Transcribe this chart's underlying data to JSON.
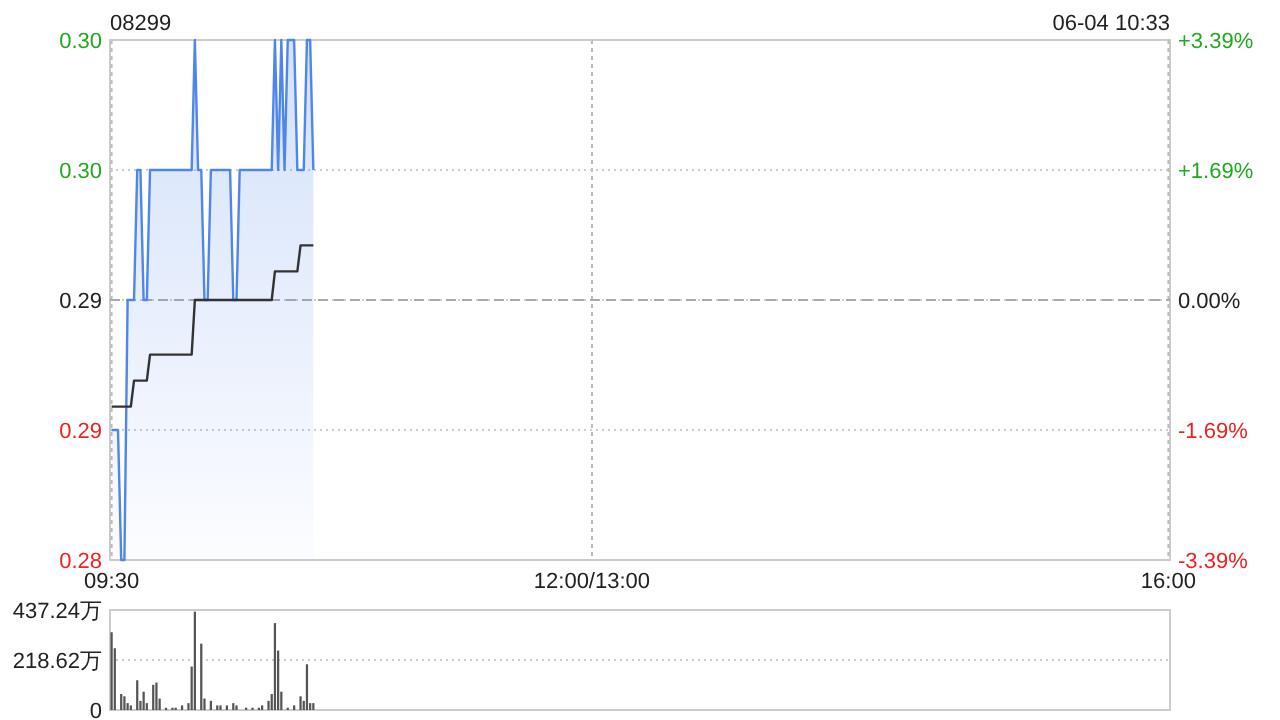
{
  "chart_data": [
    {
      "type": "area",
      "title": "08299",
      "subtitle": "06-04 10:33",
      "grid": true,
      "categories": [
        "09:30",
        null,
        null,
        null,
        null,
        null,
        null,
        null,
        null,
        null,
        null,
        null,
        null,
        null,
        null,
        null,
        null,
        null,
        null,
        null,
        null,
        null,
        null,
        null,
        null,
        null,
        null,
        null,
        null,
        null,
        null,
        null,
        null,
        null,
        null,
        null,
        null,
        null,
        null,
        null,
        null,
        null,
        null,
        null,
        null,
        null,
        null,
        null,
        null,
        null,
        null,
        null,
        null,
        null,
        null,
        null,
        null,
        null,
        null,
        null,
        null,
        null,
        null,
        null,
        null,
        null,
        null,
        null,
        null,
        null,
        null,
        null,
        null,
        null,
        null,
        null,
        null,
        null,
        null,
        null,
        null,
        null,
        null,
        null,
        null,
        null,
        null,
        null,
        null,
        null,
        null,
        null,
        null,
        null,
        null,
        null,
        null,
        null,
        null,
        null,
        null,
        null,
        null,
        null,
        null,
        null,
        null,
        null,
        null,
        null,
        null,
        null,
        null,
        null,
        null,
        null,
        null,
        null,
        null,
        null,
        null,
        null,
        null,
        null,
        null,
        null,
        null,
        null,
        null,
        null,
        null,
        null,
        null,
        null,
        null,
        null,
        null,
        null,
        null,
        null,
        null,
        null,
        null,
        null,
        null,
        null,
        null,
        null,
        null,
        null,
        "12:00/13:00",
        null,
        null,
        null,
        null,
        null,
        null,
        null,
        null,
        null,
        null,
        null,
        null,
        null,
        null,
        null,
        null,
        null,
        null,
        null,
        null,
        null,
        null,
        null,
        null,
        null,
        null,
        null,
        null,
        null,
        null,
        null,
        null,
        null,
        null,
        null,
        null,
        null,
        null,
        null,
        null,
        null,
        null,
        null,
        null,
        null,
        null,
        null,
        null,
        null,
        null,
        null,
        null,
        null,
        null,
        null,
        null,
        null,
        null,
        null,
        null,
        null,
        null,
        null,
        null,
        null,
        null,
        null,
        null,
        null,
        null,
        null,
        null,
        null,
        null,
        null,
        null,
        null,
        null,
        null,
        null,
        null,
        null,
        null,
        null,
        null,
        null,
        null,
        null,
        null,
        null,
        null,
        null,
        null,
        null,
        null,
        null,
        null,
        null,
        null,
        null,
        null,
        null,
        null,
        null,
        null,
        null,
        null,
        null,
        null,
        null,
        null,
        null,
        null,
        null,
        null,
        null,
        null,
        null,
        null,
        null,
        null,
        null,
        null,
        null,
        null,
        null,
        null,
        null,
        null,
        null,
        null,
        null,
        null,
        null,
        null,
        null,
        null,
        null,
        null,
        null,
        null,
        null,
        null,
        null,
        null,
        null,
        null,
        null,
        null,
        null,
        null,
        null,
        null,
        null,
        null,
        null,
        null,
        null,
        null,
        null,
        null,
        null,
        null,
        null,
        null,
        null,
        null,
        null,
        null,
        null,
        null,
        null,
        null,
        null,
        null,
        null,
        null,
        null,
        null,
        "16:00"
      ],
      "ylim": [
        0.285,
        0.305
      ],
      "yticks": [
        {
          "value": 0.285,
          "label": "0.28"
        },
        {
          "value": 0.29,
          "label": "0.29"
        },
        {
          "value": 0.295,
          "label": "0.29"
        },
        {
          "value": 0.3,
          "label": "0.30"
        },
        {
          "value": 0.305,
          "label": "0.30"
        }
      ],
      "y2lim": [
        -3.39,
        3.39
      ],
      "y2ticks": [
        {
          "value": -3.39,
          "label": "-3.39%"
        },
        {
          "value": -1.69,
          "label": "-1.69%"
        },
        {
          "value": 0,
          "label": "0.00%"
        },
        {
          "value": 1.69,
          "label": "+1.69%"
        },
        {
          "value": 3.39,
          "label": "+3.39%"
        }
      ],
      "ref_lines": [
        {
          "axis": "y",
          "value": 0.295,
          "label": null,
          "line_style": "dashed",
          "color": "#aaaaaa"
        }
      ],
      "series": [
        {
          "type": "area",
          "color": "#4f86ec",
          "values": [
            0.29,
            0.29,
            0.29,
            0.285,
            0.285,
            0.295,
            0.295,
            0.295,
            0.3,
            0.3,
            0.295,
            0.295,
            0.3,
            0.3,
            0.3,
            0.3,
            0.3,
            0.3,
            0.3,
            0.3,
            0.3,
            0.3,
            0.3,
            0.3,
            0.3,
            0.3,
            0.305,
            0.3,
            0.3,
            0.295,
            0.295,
            0.3,
            0.3,
            0.3,
            0.3,
            0.3,
            0.3,
            0.3,
            0.295,
            0.295,
            0.3,
            0.3,
            0.3,
            0.3,
            0.3,
            0.3,
            0.3,
            0.3,
            0.3,
            0.3,
            0.3,
            0.305,
            0.3,
            0.305,
            0.3,
            0.305,
            0.305,
            0.305,
            0.3,
            0.3,
            0.3,
            0.305,
            0.305,
            0.3,
            null,
            null,
            null,
            null,
            null,
            null,
            null,
            null,
            null,
            null,
            null,
            null,
            null,
            null,
            null,
            null,
            null,
            null,
            null,
            null,
            null,
            null,
            null,
            null,
            null,
            null,
            null,
            null,
            null,
            null,
            null,
            null,
            null,
            null,
            null,
            null,
            null,
            null,
            null,
            null,
            null,
            null,
            null,
            null,
            null,
            null,
            null,
            null,
            null,
            null,
            null,
            null,
            null,
            null,
            null,
            null,
            null,
            null,
            null,
            null,
            null,
            null,
            null,
            null,
            null,
            null,
            null,
            null,
            null,
            null,
            null,
            null,
            null,
            null,
            null,
            null,
            null,
            null,
            null,
            null,
            null,
            null,
            null,
            null,
            null,
            null,
            null,
            null,
            null,
            null,
            null,
            null,
            null,
            null,
            null,
            null,
            null,
            null,
            null,
            null,
            null,
            null,
            null,
            null,
            null,
            null,
            null,
            null,
            null,
            null,
            null,
            null,
            null,
            null,
            null,
            null,
            null,
            null,
            null,
            null,
            null,
            null,
            null,
            null,
            null,
            null,
            null,
            null,
            null,
            null,
            null,
            null,
            null,
            null,
            null,
            null,
            null,
            null,
            null,
            null,
            null,
            null,
            null,
            null,
            null,
            null,
            null,
            null,
            null,
            null,
            null,
            null,
            null,
            null,
            null,
            null,
            null,
            null,
            null,
            null,
            null,
            null,
            null,
            null,
            null,
            null,
            null,
            null,
            null,
            null,
            null,
            null,
            null,
            null,
            null,
            null,
            null,
            null,
            null,
            null,
            null,
            null,
            null,
            null,
            null,
            null,
            null,
            null,
            null,
            null,
            null,
            null,
            null,
            null,
            null,
            null,
            null,
            null,
            null,
            null,
            null,
            null,
            null,
            null,
            null,
            null,
            null,
            null,
            null,
            null,
            null,
            null,
            null,
            null,
            null,
            null,
            null,
            null,
            null,
            null,
            null,
            null,
            null,
            null,
            null,
            null,
            null,
            null,
            null,
            null,
            null,
            null,
            null,
            null,
            null,
            null,
            null,
            null,
            null,
            null,
            null,
            null,
            null,
            null,
            null,
            null,
            null,
            null,
            null,
            null,
            null,
            null,
            null,
            null,
            null,
            null,
            null,
            null,
            null,
            null,
            null,
            null,
            null,
            null,
            null,
            null,
            null
          ]
        },
        {
          "type": "line",
          "color": "#333333",
          "values": [
            0.2909,
            0.2909,
            0.2909,
            0.2909,
            0.2909,
            0.2909,
            0.2909,
            0.2919,
            0.2919,
            0.2919,
            0.2919,
            0.2919,
            0.2929,
            0.2929,
            0.2929,
            0.2929,
            0.2929,
            0.2929,
            0.2929,
            0.2929,
            0.2929,
            0.2929,
            0.2929,
            0.2929,
            0.2929,
            0.2929,
            0.295,
            0.295,
            0.295,
            0.295,
            0.295,
            0.295,
            0.295,
            0.295,
            0.295,
            0.295,
            0.295,
            0.295,
            0.295,
            0.295,
            0.295,
            0.295,
            0.295,
            0.295,
            0.295,
            0.295,
            0.295,
            0.295,
            0.295,
            0.295,
            0.295,
            0.2961,
            0.2961,
            0.2961,
            0.2961,
            0.2961,
            0.2961,
            0.2961,
            0.2961,
            0.2971,
            0.2971,
            0.2971,
            0.2971,
            0.2971,
            null,
            null,
            null,
            null,
            null,
            null,
            null,
            null,
            null,
            null,
            null,
            null,
            null,
            null,
            null,
            null,
            null,
            null,
            null,
            null,
            null,
            null,
            null,
            null,
            null,
            null,
            null,
            null,
            null,
            null,
            null,
            null,
            null,
            null,
            null,
            null,
            null,
            null,
            null,
            null,
            null,
            null,
            null,
            null,
            null,
            null,
            null,
            null,
            null,
            null,
            null,
            null,
            null,
            null,
            null,
            null,
            null,
            null,
            null,
            null,
            null,
            null,
            null,
            null,
            null,
            null,
            null,
            null,
            null,
            null,
            null,
            null,
            null,
            null,
            null,
            null,
            null,
            null,
            null,
            null,
            null,
            null,
            null,
            null,
            null,
            null,
            null,
            null,
            null,
            null,
            null,
            null,
            null,
            null,
            null,
            null,
            null,
            null,
            null,
            null,
            null,
            null,
            null,
            null,
            null,
            null,
            null,
            null,
            null,
            null,
            null,
            null,
            null,
            null,
            null,
            null,
            null,
            null,
            null,
            null,
            null,
            null,
            null,
            null,
            null,
            null,
            null,
            null,
            null,
            null,
            null,
            null,
            null,
            null,
            null,
            null,
            null,
            null,
            null,
            null,
            null,
            null,
            null,
            null,
            null,
            null,
            null,
            null,
            null,
            null,
            null,
            null,
            null,
            null,
            null,
            null,
            null,
            null,
            null,
            null,
            null,
            null,
            null,
            null,
            null,
            null,
            null,
            null,
            null,
            null,
            null,
            null,
            null,
            null,
            null,
            null,
            null,
            null,
            null,
            null,
            null,
            null,
            null,
            null,
            null,
            null,
            null,
            null,
            null,
            null,
            null,
            null,
            null,
            null,
            null,
            null,
            null,
            null,
            null,
            null,
            null,
            null,
            null,
            null,
            null,
            null,
            null,
            null,
            null,
            null,
            null,
            null,
            null,
            null,
            null,
            null,
            null,
            null,
            null,
            null,
            null,
            null,
            null,
            null,
            null,
            null,
            null,
            null,
            null,
            null,
            null,
            null,
            null,
            null,
            null,
            null,
            null,
            null,
            null,
            null,
            null,
            null,
            null,
            null,
            null,
            null,
            null,
            null,
            null,
            null,
            null,
            null,
            null,
            null,
            null,
            null,
            null,
            null,
            null,
            null,
            null,
            null,
            null,
            null,
            null,
            null,
            null
          ]
        }
      ]
    },
    {
      "type": "bar",
      "color": "#555555",
      "grid": "y",
      "ylim": [
        0,
        437.24
      ],
      "yticks": [
        0,
        {
          "value": 218.62,
          "label": "218.62万"
        },
        {
          "value": 437.24,
          "label": "437.24万"
        }
      ],
      "categories": [
        null,
        null,
        null,
        null,
        null,
        null,
        null,
        null,
        null,
        null,
        null,
        null,
        null,
        null,
        null,
        null,
        null,
        null,
        null,
        null,
        null,
        null,
        null,
        null,
        null,
        null,
        null,
        null,
        null,
        null,
        null,
        null,
        null,
        null,
        null,
        null,
        null,
        null,
        null,
        null,
        null,
        null,
        null,
        null,
        null,
        null,
        null,
        null,
        null,
        null,
        null,
        null,
        null,
        null,
        null,
        null,
        null,
        null,
        null,
        null,
        null,
        null,
        null,
        null,
        null,
        null,
        null,
        null,
        null,
        null,
        null,
        null,
        null,
        null,
        null,
        null,
        null,
        null,
        null,
        null,
        null,
        null,
        null,
        null,
        null,
        null,
        null,
        null,
        null,
        null,
        null,
        null,
        null,
        null,
        null,
        null,
        null,
        null,
        null,
        null,
        null,
        null,
        null,
        null,
        null,
        null,
        null,
        null,
        null,
        null,
        null,
        null,
        null,
        null,
        null,
        null,
        null,
        null,
        null,
        null,
        null,
        null,
        null,
        null,
        null,
        null,
        null,
        null,
        null,
        null,
        null,
        null,
        null,
        null,
        null,
        null,
        null,
        null,
        null,
        null,
        null,
        null,
        null,
        null,
        null,
        null,
        null,
        null,
        null,
        null,
        null,
        null,
        null,
        null,
        null,
        null,
        null,
        null,
        null,
        null,
        null,
        null,
        null,
        null,
        null,
        null,
        null,
        null,
        null,
        null,
        null,
        null,
        null,
        null,
        null,
        null,
        null,
        null,
        null,
        null,
        null,
        null,
        null,
        null,
        null,
        null,
        null,
        null,
        null,
        null,
        null,
        null,
        null,
        null,
        null,
        null,
        null,
        null,
        null,
        null,
        null,
        null,
        null,
        null,
        null,
        null,
        null,
        null,
        null,
        null,
        null,
        null,
        null,
        null,
        null,
        null,
        null,
        null,
        null,
        null,
        null,
        null,
        null,
        null,
        null,
        null,
        null,
        null,
        null,
        null,
        null,
        null,
        null,
        null,
        null,
        null,
        null,
        null,
        null,
        null,
        null,
        null,
        null,
        null,
        null,
        null,
        null,
        null,
        null,
        null,
        null,
        null,
        null,
        null,
        null,
        null,
        null,
        null,
        null,
        null,
        null,
        null,
        null,
        null,
        null,
        null,
        null,
        null,
        null,
        null,
        null,
        null,
        null,
        null,
        null,
        null,
        null,
        null,
        null,
        null,
        null,
        null,
        null,
        null,
        null,
        null,
        null,
        null,
        null,
        null,
        null,
        null,
        null,
        null,
        null,
        null,
        null,
        null,
        null,
        null,
        null,
        null,
        null,
        null,
        null,
        null,
        null,
        null,
        null,
        null,
        null,
        null,
        null,
        null,
        null,
        null,
        null,
        null,
        null,
        null,
        null,
        null,
        null,
        null,
        null,
        null,
        null,
        null,
        null,
        null,
        null
      ],
      "values": [
        340,
        270,
        null,
        70,
        60,
        30,
        20,
        null,
        130,
        40,
        80,
        30,
        null,
        110,
        120,
        50,
        null,
        10,
        null,
        10,
        10,
        null,
        20,
        null,
        30,
        190,
        430,
        null,
        290,
        50,
        null,
        40,
        null,
        20,
        20,
        null,
        20,
        null,
        30,
        20,
        null,
        null,
        10,
        null,
        10,
        null,
        10,
        20,
        null,
        40,
        70,
        380,
        260,
        80,
        null,
        10,
        null,
        20,
        null,
        60,
        40,
        200,
        30,
        30,
        null,
        null,
        null,
        null,
        null,
        null,
        null,
        null,
        null,
        null,
        null,
        null,
        null,
        null,
        null,
        null,
        null,
        null,
        null,
        null,
        null,
        null,
        null,
        null,
        null,
        null,
        null,
        null,
        null,
        null,
        null,
        null,
        null,
        null,
        null,
        null,
        null,
        null,
        null,
        null,
        null,
        null,
        null,
        null,
        null,
        null,
        null,
        null,
        null,
        null,
        null,
        null,
        null,
        null,
        null,
        null,
        null,
        null,
        null,
        null,
        null,
        null,
        null,
        null,
        null,
        null,
        null,
        null,
        null,
        null,
        null,
        null,
        null,
        null,
        null,
        null,
        null,
        null,
        null,
        null,
        null,
        null,
        null,
        null,
        null,
        null,
        null,
        null,
        null,
        null,
        null,
        null,
        null,
        null,
        null,
        null,
        null,
        null,
        null,
        null,
        null,
        null,
        null,
        null,
        null,
        null,
        null,
        null,
        null,
        null,
        null,
        null,
        null,
        null,
        null,
        null,
        null,
        null,
        null,
        null,
        null,
        null,
        null,
        null,
        null,
        null,
        null,
        null,
        null,
        null,
        null,
        null,
        null,
        null,
        null,
        null,
        null,
        null,
        null,
        null,
        null,
        null,
        null,
        null,
        null,
        null,
        null,
        null,
        null,
        null,
        null,
        null,
        null,
        null,
        null,
        null,
        null,
        null,
        null,
        null,
        null,
        null,
        null,
        null,
        null,
        null,
        null,
        null,
        null,
        null,
        null,
        null,
        null,
        null,
        null,
        null,
        null,
        null,
        null,
        null,
        null,
        null,
        null,
        null,
        null,
        null,
        null,
        null,
        null,
        null,
        null,
        null,
        null,
        null,
        null,
        null,
        null,
        null,
        null,
        null,
        null,
        null,
        null,
        null,
        null,
        null,
        null,
        null,
        null,
        null,
        null,
        null,
        null,
        null,
        null,
        null,
        null,
        null,
        null,
        null,
        null,
        null,
        null,
        null,
        null,
        null,
        null,
        null,
        null,
        null,
        null,
        null,
        null,
        null,
        null,
        null,
        null,
        null,
        null,
        null,
        null,
        null,
        null,
        null,
        null,
        null,
        null,
        null,
        null,
        null,
        null,
        null,
        null,
        null,
        null,
        null,
        null,
        null,
        null,
        null,
        null,
        null,
        null,
        null,
        null,
        null,
        null
      ]
    }
  ]
}
